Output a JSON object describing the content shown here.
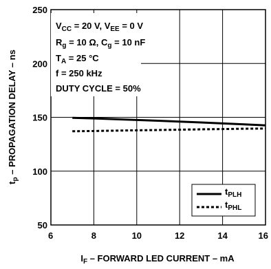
{
  "chart_data": {
    "type": "line",
    "x": [
      7,
      8,
      9,
      10,
      11,
      12,
      13,
      14,
      15,
      16
    ],
    "series": [
      {
        "name": "t_PLH",
        "name_main": "t",
        "name_sub": "PLH",
        "style": "solid",
        "color": "#000000",
        "values": [
          149.5,
          149.0,
          148.3,
          147.5,
          146.8,
          146.0,
          145.2,
          144.3,
          143.4,
          142.5
        ]
      },
      {
        "name": "t_PHL",
        "name_main": "t",
        "name_sub": "PHL",
        "style": "dashed",
        "color": "#000000",
        "values": [
          137.0,
          137.3,
          137.6,
          137.9,
          138.2,
          138.5,
          138.8,
          139.1,
          139.4,
          139.6
        ]
      }
    ],
    "xlim": [
      6,
      16
    ],
    "ylim": [
      50,
      250
    ],
    "xticks": [
      "6",
      "8",
      "10",
      "12",
      "14",
      "16"
    ],
    "yticks": [
      "50",
      "100",
      "150",
      "200",
      "250"
    ],
    "xlabel": {
      "pre": "I",
      "sub": "F",
      "post": " – FORWARD LED CURRENT – mA"
    },
    "ylabel": {
      "pre": "t",
      "sub": "p",
      "post": " – PROPAGATION DELAY – ns"
    },
    "grid": true,
    "legend_placement": "bottom-right",
    "conditions": {
      "line1": {
        "a": "V",
        "a_sub": "CC",
        "b": " = 20 V, V",
        "b_sub": "EE",
        "c": " = 0 V"
      },
      "line2": {
        "a": "R",
        "a_sub": "g",
        "b": " = 10 Ω, C",
        "b_sub": "g",
        "c": " = 10 nF"
      },
      "line3": {
        "a": "T",
        "a_sub": "A",
        "b": " = 25 °C"
      },
      "line4": "f = 250 kHz",
      "line5": "DUTY CYCLE = 50%"
    }
  }
}
